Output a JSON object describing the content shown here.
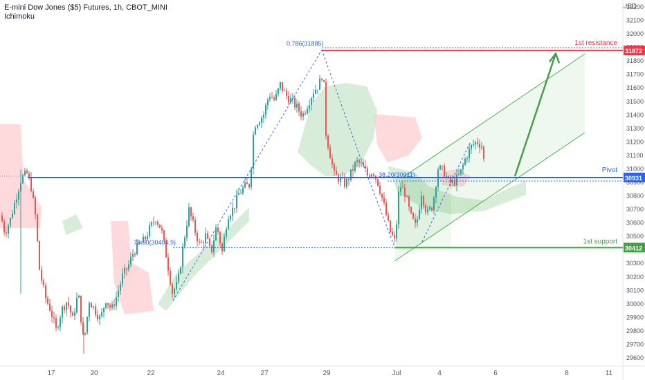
{
  "header": {
    "title": "E-mini Dow Jones ($5) Futures, 1h, CBOT_MINI",
    "indicator": "Ichimoku"
  },
  "axis_unit": "USD",
  "chart_data": {
    "type": "candlestick",
    "colors": {
      "up": "#26a69a",
      "down": "#ef5350",
      "resistance": "#f23645",
      "pivot": "#2962ff",
      "support": "#43a047",
      "fib": "#2962ff",
      "channel": "#4caf50",
      "cloud_bull": "#c8e6c9",
      "cloud_bear": "#ffcdd2"
    },
    "ylim": [
      29550,
      32280
    ],
    "y_ticks": [
      29600,
      29700,
      29800,
      29900,
      30000,
      30100,
      30200,
      30300,
      30400,
      30500,
      30600,
      30700,
      30800,
      30900,
      31000,
      31100,
      31200,
      31300,
      31400,
      31500,
      31600,
      31700,
      31800,
      31900,
      32000,
      32100,
      32200
    ],
    "x_ticks": [
      "17",
      "20",
      "22",
      "24",
      "27",
      "29",
      "Jul",
      "4",
      "6",
      "8",
      "11"
    ],
    "levels": [
      {
        "name": "1st resistance",
        "value": 31872,
        "badge": "31872"
      },
      {
        "name": "Pivot",
        "value": 30931,
        "badge": "30931"
      },
      {
        "name": "1st support",
        "value": 30412,
        "badge": "30412"
      }
    ],
    "fib_labels": [
      {
        "text": "0.786(31885)",
        "value": 31885
      },
      {
        "text": "78.60(30404.9)",
        "value": 30405
      },
      {
        "text": "38.20(30911)",
        "value": 30911
      }
    ],
    "price_path": [
      [
        0,
        30650
      ],
      [
        6,
        30520
      ],
      [
        14,
        30620
      ],
      [
        22,
        30780
      ],
      [
        30,
        30930
      ],
      [
        38,
        30960
      ],
      [
        44,
        30860
      ],
      [
        50,
        30650
      ],
      [
        56,
        30250
      ],
      [
        64,
        30050
      ],
      [
        72,
        29950
      ],
      [
        80,
        29800
      ],
      [
        88,
        29950
      ],
      [
        96,
        30020
      ],
      [
        104,
        29880
      ],
      [
        112,
        30080
      ],
      [
        120,
        29700
      ],
      [
        128,
        30020
      ],
      [
        136,
        29950
      ],
      [
        144,
        29880
      ],
      [
        152,
        30030
      ],
      [
        160,
        29950
      ],
      [
        168,
        30060
      ],
      [
        176,
        30200
      ],
      [
        184,
        30270
      ],
      [
        192,
        30380
      ],
      [
        200,
        30430
      ],
      [
        208,
        30470
      ],
      [
        216,
        30560
      ],
      [
        224,
        30630
      ],
      [
        232,
        30550
      ],
      [
        240,
        30330
      ],
      [
        248,
        30080
      ],
      [
        256,
        30150
      ],
      [
        264,
        30440
      ],
      [
        272,
        30690
      ],
      [
        280,
        30550
      ],
      [
        288,
        30420
      ],
      [
        296,
        30500
      ],
      [
        304,
        30370
      ],
      [
        312,
        30580
      ],
      [
        320,
        30380
      ],
      [
        328,
        30650
      ],
      [
        336,
        30700
      ],
      [
        344,
        30810
      ],
      [
        352,
        30860
      ],
      [
        360,
        30880
      ],
      [
        366,
        31320
      ],
      [
        372,
        31350
      ],
      [
        380,
        31400
      ],
      [
        388,
        31550
      ],
      [
        396,
        31500
      ],
      [
        404,
        31620
      ],
      [
        412,
        31540
      ],
      [
        420,
        31500
      ],
      [
        428,
        31450
      ],
      [
        436,
        31390
      ],
      [
        444,
        31480
      ],
      [
        452,
        31570
      ],
      [
        460,
        31620
      ],
      [
        466,
        31720
      ],
      [
        470,
        31260
      ],
      [
        476,
        31100
      ],
      [
        482,
        30950
      ],
      [
        490,
        30920
      ],
      [
        498,
        30880
      ],
      [
        506,
        30960
      ],
      [
        514,
        31050
      ],
      [
        522,
        31020
      ],
      [
        530,
        30950
      ],
      [
        538,
        30980
      ],
      [
        546,
        30880
      ],
      [
        554,
        30720
      ],
      [
        562,
        30540
      ],
      [
        570,
        30450
      ],
      [
        576,
        30880
      ],
      [
        584,
        30820
      ],
      [
        592,
        30650
      ],
      [
        600,
        30560
      ],
      [
        608,
        30820
      ],
      [
        616,
        30660
      ],
      [
        624,
        30720
      ],
      [
        632,
        31000
      ],
      [
        640,
        30980
      ],
      [
        648,
        30890
      ],
      [
        656,
        30900
      ],
      [
        664,
        30960
      ],
      [
        672,
        31080
      ],
      [
        680,
        31160
      ],
      [
        688,
        31200
      ],
      [
        696,
        31160
      ],
      [
        700,
        30960
      ]
    ],
    "targets": [
      {
        "type": "arrow",
        "from": [
          744,
          30940
        ],
        "to": [
          803,
          31870
        ]
      }
    ]
  }
}
